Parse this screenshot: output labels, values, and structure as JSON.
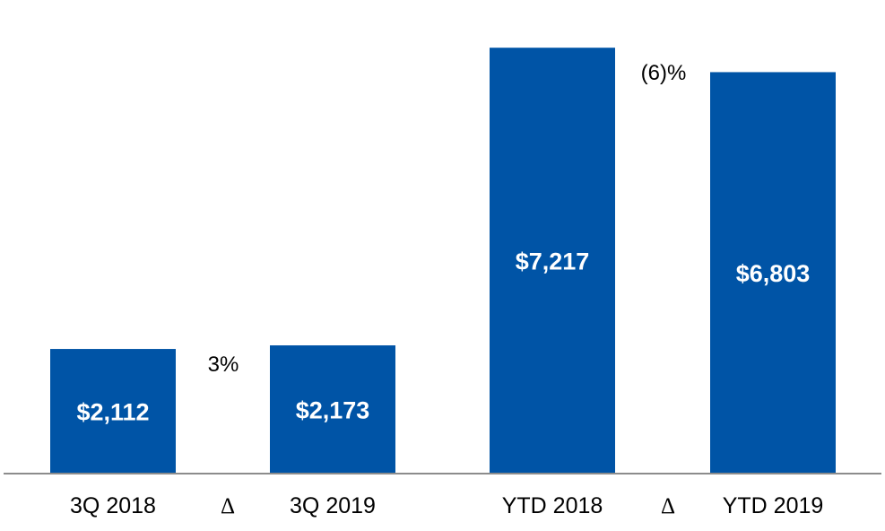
{
  "chart_data": {
    "type": "bar",
    "categories": [
      "3Q 2018",
      "3Q 2019",
      "YTD 2018",
      "YTD 2019"
    ],
    "values": [
      2112,
      2173,
      7217,
      6803
    ],
    "data_labels": [
      "$2,112",
      "$2,173",
      "$7,217",
      "$6,803"
    ],
    "ylim": [
      0,
      7600
    ],
    "grid": false,
    "comparisons": [
      {
        "symbol": "Δ",
        "change": "3%"
      },
      {
        "symbol": "Δ",
        "change": "(6)%"
      }
    ]
  },
  "colors": {
    "bar": "#0054a6",
    "bar_label": "#ffffff",
    "axis": "#8c8c8c",
    "text": "#000000"
  }
}
